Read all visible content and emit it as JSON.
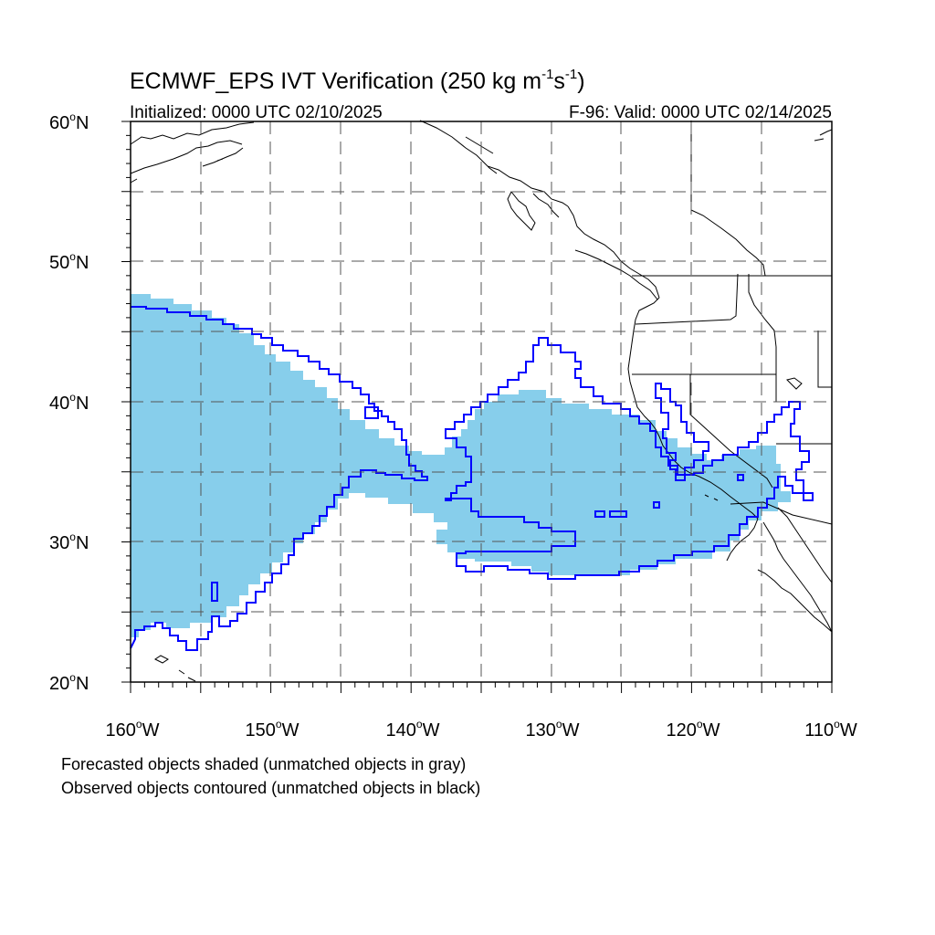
{
  "title": {
    "main": "ECMWF_EPS IVT Verification (250 kg m",
    "exp1": "-1",
    "mid": "s",
    "exp2": "-1",
    "close": ")"
  },
  "subtitle_left": "Initialized: 0000 UTC 02/10/2025",
  "subtitle_right": "F-96: Valid: 0000 UTC 02/14/2025",
  "lat_labels": [
    {
      "deg": "60",
      "suffix": "N"
    },
    {
      "deg": "50",
      "suffix": "N"
    },
    {
      "deg": "40",
      "suffix": "N"
    },
    {
      "deg": "30",
      "suffix": "N"
    },
    {
      "deg": "20",
      "suffix": "N"
    }
  ],
  "lon_labels": [
    {
      "deg": "160",
      "suffix": "W"
    },
    {
      "deg": "150",
      "suffix": "W"
    },
    {
      "deg": "140",
      "suffix": "W"
    },
    {
      "deg": "130",
      "suffix": "W"
    },
    {
      "deg": "120",
      "suffix": "W"
    },
    {
      "deg": "110",
      "suffix": "W"
    }
  ],
  "legend_lines": [
    "Forecasted objects shaded (unmatched objects in gray)",
    "Observed objects contoured (unmatched objects in black)"
  ],
  "colors": {
    "forecast_fill": "#87ceeb",
    "observed_contour": "#0000ff",
    "coastline": "#000000",
    "grid": "#555555"
  },
  "map": {
    "lon_range": [
      -160,
      -110
    ],
    "lat_range": [
      20,
      60
    ],
    "gridlines": "dashed, every 5 degrees",
    "projection": "cylindrical equidistant"
  }
}
